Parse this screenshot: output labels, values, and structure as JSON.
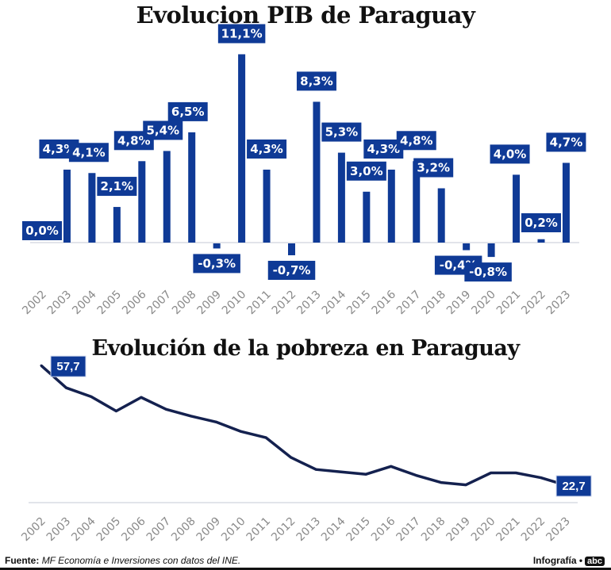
{
  "chart_data": [
    {
      "type": "bar",
      "title": "Evolucion PIB de Paraguay",
      "categories": [
        "2002",
        "2003",
        "2004",
        "2005",
        "2006",
        "2007",
        "2008",
        "2009",
        "2010",
        "2011",
        "2012",
        "2013",
        "2014",
        "2015",
        "2016",
        "2017",
        "2018",
        "2019",
        "2020",
        "2021",
        "2022",
        "2023"
      ],
      "values": [
        0.0,
        4.3,
        4.1,
        2.1,
        4.8,
        5.4,
        6.5,
        -0.3,
        11.1,
        4.3,
        -0.7,
        8.3,
        5.3,
        3.0,
        4.3,
        4.8,
        3.2,
        -0.4,
        -0.8,
        4.0,
        0.2,
        4.7
      ],
      "data_labels": [
        "0,0%",
        "4,3%",
        "4,1%",
        "2,1%",
        "4,8%",
        "5,4%",
        "6,5%",
        "-0,3%",
        "11,1%",
        "4,3%",
        "-0,7%",
        "8,3%",
        "5,3%",
        "3,0%",
        "4,3%",
        "4,8%",
        "3,2%",
        "-0,4%",
        "-0,8%",
        "4,0%",
        "0,2%",
        "4,7%"
      ],
      "unit": "%",
      "ylim": [
        -2.5,
        12
      ],
      "grid": false,
      "bar_color": "#0f3a96"
    },
    {
      "type": "line",
      "title": "Evolución de la pobreza en Paraguay",
      "categories": [
        "2002",
        "2003",
        "2004",
        "2005",
        "2006",
        "2007",
        "2008",
        "2009",
        "2010",
        "2011",
        "2012",
        "2013",
        "2014",
        "2015",
        "2016",
        "2017",
        "2018",
        "2019",
        "2020",
        "2021",
        "2022",
        "2023"
      ],
      "values": [
        57.7,
        51.2,
        48.6,
        44.4,
        48.4,
        44.9,
        42.9,
        41.2,
        38.4,
        36.6,
        30.8,
        27.3,
        26.6,
        25.9,
        28.2,
        25.6,
        23.5,
        22.8,
        26.3,
        26.3,
        24.9,
        22.7
      ],
      "annotations": [
        {
          "category": "2002",
          "label": "57,7"
        },
        {
          "category": "2023",
          "label": "22,7"
        }
      ],
      "ylim": [
        17.6,
        60
      ],
      "grid": false,
      "line_color": "#14214f"
    }
  ],
  "footer": {
    "source_label": "Fuente:",
    "source_text": "MF Economía e Inversiones con datos del INE.",
    "credit": "Infografía •",
    "logo": "abc"
  }
}
